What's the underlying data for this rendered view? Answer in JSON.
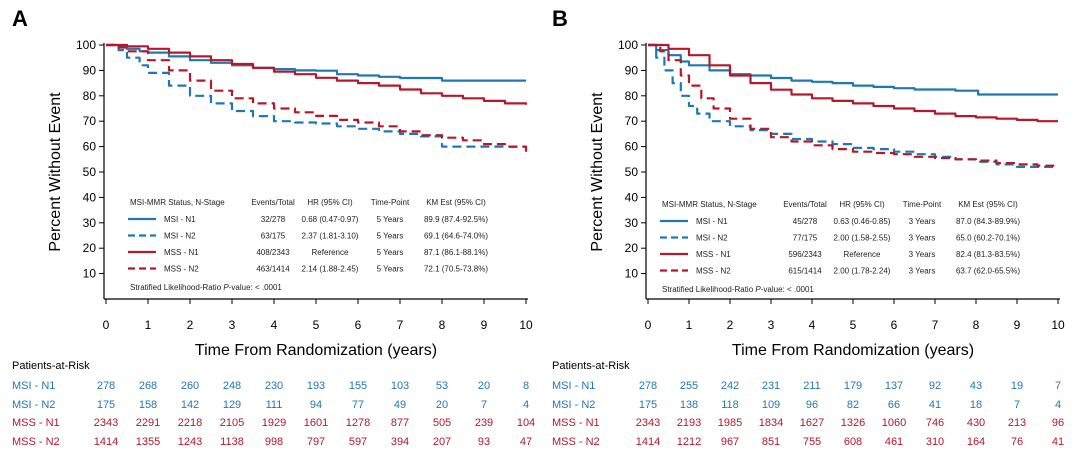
{
  "colors": {
    "msi": "#1f78b4",
    "mss": "#b5182b",
    "axis": "#000000",
    "text": "#222222"
  },
  "chart_data": [
    {
      "panel_label": "A",
      "type": "line",
      "xlabel": "Time From Randomization (years)",
      "ylabel": "Percent Without Event",
      "xlim": [
        0,
        10
      ],
      "ylim": [
        0,
        100
      ],
      "xticks": [
        0,
        1,
        2,
        3,
        4,
        5,
        6,
        7,
        8,
        9,
        10
      ],
      "yticks": [
        10,
        20,
        30,
        40,
        50,
        60,
        70,
        80,
        90,
        100
      ],
      "legend": {
        "headers": [
          "MSI-MMR Status, N-Stage",
          "Events/Total",
          "HR (95% CI)",
          "Time-Point",
          "KM Est (95% CI)"
        ],
        "rows": [
          {
            "name": "MSI - N1",
            "events": "32/278",
            "hr": "0.68 (0.47-0.97)",
            "tp": "5 Years",
            "km": "89.9 (87.4-92.5%)"
          },
          {
            "name": "MSI - N2",
            "events": "63/175",
            "hr": "2.37 (1.81-3.10)",
            "tp": "5 Years",
            "km": "69.1 (64.6-74.0%)"
          },
          {
            "name": "MSS - N1",
            "events": "408/2343",
            "hr": "Reference",
            "tp": "5 Years",
            "km": "87.1 (86.1-88.1%)"
          },
          {
            "name": "MSS - N2",
            "events": "463/1414",
            "hr": "2.14 (1.88-2.45)",
            "tp": "5 Years",
            "km": "72.1 (70.5-73.8%)"
          }
        ],
        "footnote_prefix": "Stratified Likelihood-Ratio ",
        "footnote_p": "P",
        "footnote_suffix": "-value: < .0001"
      },
      "series": [
        {
          "name": "MSI - N1",
          "color": "msi",
          "dashed": false,
          "x": [
            0,
            0.3,
            0.5,
            0.8,
            1,
            1.5,
            2,
            2.5,
            3,
            3.5,
            4,
            4.5,
            5,
            5.5,
            6,
            6.5,
            7,
            8,
            9,
            10
          ],
          "y": [
            100,
            99.5,
            98.5,
            97.5,
            97,
            95.5,
            94,
            93,
            92,
            91,
            90.5,
            90,
            89.9,
            88.5,
            88,
            87.5,
            87,
            86,
            86,
            86
          ]
        },
        {
          "name": "MSI - N2",
          "color": "msi",
          "dashed": true,
          "x": [
            0,
            0.3,
            0.5,
            0.8,
            1,
            1.5,
            2,
            2.5,
            3,
            3.5,
            4,
            4.5,
            5,
            5.5,
            6,
            6.5,
            7,
            7.5,
            8,
            9,
            10
          ],
          "y": [
            100,
            98,
            95,
            92,
            89,
            84,
            80,
            77,
            74,
            72,
            70,
            69.5,
            69.1,
            68,
            67,
            66,
            65,
            64,
            60,
            60,
            60
          ]
        },
        {
          "name": "MSS - N1",
          "color": "mss",
          "dashed": false,
          "x": [
            0,
            0.5,
            1,
            1.5,
            2,
            2.5,
            3,
            3.5,
            4,
            4.5,
            5,
            5.5,
            6,
            6.5,
            7,
            7.5,
            8,
            8.5,
            9,
            9.5,
            10
          ],
          "y": [
            100,
            99.5,
            98.5,
            97,
            95.5,
            94,
            92.5,
            91,
            89.5,
            88.5,
            87.1,
            86,
            85,
            84,
            82.5,
            81,
            80,
            79,
            78,
            77,
            76.5
          ]
        },
        {
          "name": "MSS - N2",
          "color": "mss",
          "dashed": true,
          "x": [
            0,
            0.3,
            0.5,
            1,
            1.5,
            2,
            2.5,
            3,
            3.5,
            4,
            4.5,
            5,
            5.5,
            6,
            6.5,
            7,
            7.5,
            8,
            8.5,
            9,
            9.5,
            10
          ],
          "y": [
            100,
            99,
            97.5,
            94,
            90,
            86,
            82,
            79,
            77,
            75,
            73.5,
            72.1,
            70.5,
            69.5,
            68,
            66,
            64.5,
            63.5,
            62.5,
            61,
            60,
            58
          ]
        }
      ]
    },
    {
      "panel_label": "B",
      "type": "line",
      "xlabel": "Time From Randomization (years)",
      "ylabel": "Percent Without Event",
      "xlim": [
        0,
        10
      ],
      "ylim": [
        0,
        100
      ],
      "xticks": [
        0,
        1,
        2,
        3,
        4,
        5,
        6,
        7,
        8,
        9,
        10
      ],
      "yticks": [
        10,
        20,
        30,
        40,
        50,
        60,
        70,
        80,
        90,
        100
      ],
      "legend": {
        "headers": [
          "MSI-MMR Status, N-Stage",
          "Events/Total",
          "HR (95% CI)",
          "Time-Point",
          "KM Est (95% CI)"
        ],
        "rows": [
          {
            "name": "MSI - N1",
            "events": "45/278",
            "hr": "0.63 (0.46-0.85)",
            "tp": "3 Years",
            "km": "87.0 (84.3-89.9%)"
          },
          {
            "name": "MSI - N2",
            "events": "77/175",
            "hr": "2.00 (1.58-2.55)",
            "tp": "3 Years",
            "km": "65.0 (60.2-70.1%)"
          },
          {
            "name": "MSS - N1",
            "events": "596/2343",
            "hr": "Reference",
            "tp": "3 Years",
            "km": "82.4 (81.3-83.5%)"
          },
          {
            "name": "MSS - N2",
            "events": "615/1414",
            "hr": "2.00 (1.78-2.24)",
            "tp": "3 Years",
            "km": "63.7 (62.0-65.5%)"
          }
        ],
        "footnote_prefix": "Stratified Likelihood-Ratio ",
        "footnote_p": "P",
        "footnote_suffix": "-value: < .0001"
      },
      "series": [
        {
          "name": "MSI - N1",
          "color": "msi",
          "dashed": false,
          "x": [
            0,
            0.2,
            0.5,
            0.8,
            1,
            1.5,
            2,
            2.5,
            3,
            3.5,
            4,
            4.5,
            5,
            5.5,
            6,
            6.5,
            7,
            7.5,
            8,
            8.05,
            9,
            10
          ],
          "y": [
            100,
            98,
            96,
            93.5,
            92,
            90,
            88.5,
            88,
            87,
            86,
            85.5,
            85,
            84,
            83.5,
            83,
            82.5,
            82.5,
            82,
            82,
            80.5,
            80.5,
            80.5
          ]
        },
        {
          "name": "MSI - N2",
          "color": "msi",
          "dashed": true,
          "x": [
            0,
            0.2,
            0.4,
            0.6,
            0.8,
            1,
            1.2,
            1.5,
            2,
            2.5,
            3,
            3.5,
            4,
            4.5,
            5,
            5.5,
            6,
            6.5,
            7,
            7.5,
            8,
            8.5,
            9,
            9.5,
            10
          ],
          "y": [
            100,
            95,
            90,
            85,
            80,
            76,
            73,
            70,
            68,
            66.5,
            65,
            63,
            62,
            61,
            59.5,
            59,
            58,
            57,
            56,
            55,
            54,
            53,
            52,
            52,
            52
          ]
        },
        {
          "name": "MSS - N1",
          "color": "mss",
          "dashed": false,
          "x": [
            0,
            0.5,
            1,
            1.5,
            2,
            2.5,
            3,
            3.5,
            4,
            4.5,
            5,
            5.5,
            6,
            6.5,
            7,
            7.5,
            8,
            8.5,
            9,
            9.5,
            10
          ],
          "y": [
            100,
            98.5,
            96,
            92,
            88,
            85,
            82.4,
            80.5,
            79,
            78,
            77,
            76,
            75,
            74,
            73,
            72,
            71.5,
            71,
            70.5,
            70,
            70
          ]
        },
        {
          "name": "MSS - N2",
          "color": "mss",
          "dashed": true,
          "x": [
            0,
            0.3,
            0.5,
            0.8,
            1,
            1.3,
            1.6,
            2,
            2.5,
            3,
            3.5,
            4,
            4.5,
            5,
            5.5,
            6,
            6.5,
            7,
            7.5,
            8,
            8.5,
            9,
            9.5,
            10
          ],
          "y": [
            100,
            97.5,
            94,
            88,
            84,
            79,
            75,
            71,
            67,
            63.7,
            62,
            60.5,
            59,
            58,
            57.5,
            57,
            56,
            55.5,
            55,
            54.5,
            53.5,
            53,
            52.5,
            52
          ]
        }
      ]
    }
  ],
  "risk_tables": [
    {
      "title": "Patients-at-Risk",
      "rows": [
        {
          "name": "MSI - N1",
          "color": "msi",
          "values": [
            "278",
            "268",
            "260",
            "248",
            "230",
            "193",
            "155",
            "103",
            "53",
            "20",
            "8"
          ]
        },
        {
          "name": "MSI - N2",
          "color": "msi",
          "values": [
            "175",
            "158",
            "142",
            "129",
            "111",
            "94",
            "77",
            "49",
            "20",
            "7",
            "4"
          ]
        },
        {
          "name": "MSS - N1",
          "color": "mss",
          "values": [
            "2343",
            "2291",
            "2218",
            "2105",
            "1929",
            "1601",
            "1278",
            "877",
            "505",
            "239",
            "104"
          ]
        },
        {
          "name": "MSS - N2",
          "color": "mss",
          "values": [
            "1414",
            "1355",
            "1243",
            "1138",
            "998",
            "797",
            "597",
            "394",
            "207",
            "93",
            "47"
          ]
        }
      ]
    },
    {
      "title": "Patients-at-Risk",
      "rows": [
        {
          "name": "MSI - N1",
          "color": "msi",
          "values": [
            "278",
            "255",
            "242",
            "231",
            "211",
            "179",
            "137",
            "92",
            "43",
            "19",
            "7"
          ]
        },
        {
          "name": "MSI - N2",
          "color": "msi",
          "values": [
            "175",
            "138",
            "118",
            "109",
            "96",
            "82",
            "66",
            "41",
            "18",
            "7",
            "4"
          ]
        },
        {
          "name": "MSS - N1",
          "color": "mss",
          "values": [
            "2343",
            "2193",
            "1985",
            "1834",
            "1627",
            "1326",
            "1060",
            "746",
            "430",
            "213",
            "96"
          ]
        },
        {
          "name": "MSS - N2",
          "color": "mss",
          "values": [
            "1414",
            "1212",
            "967",
            "851",
            "755",
            "608",
            "461",
            "310",
            "164",
            "76",
            "41"
          ]
        }
      ]
    }
  ]
}
